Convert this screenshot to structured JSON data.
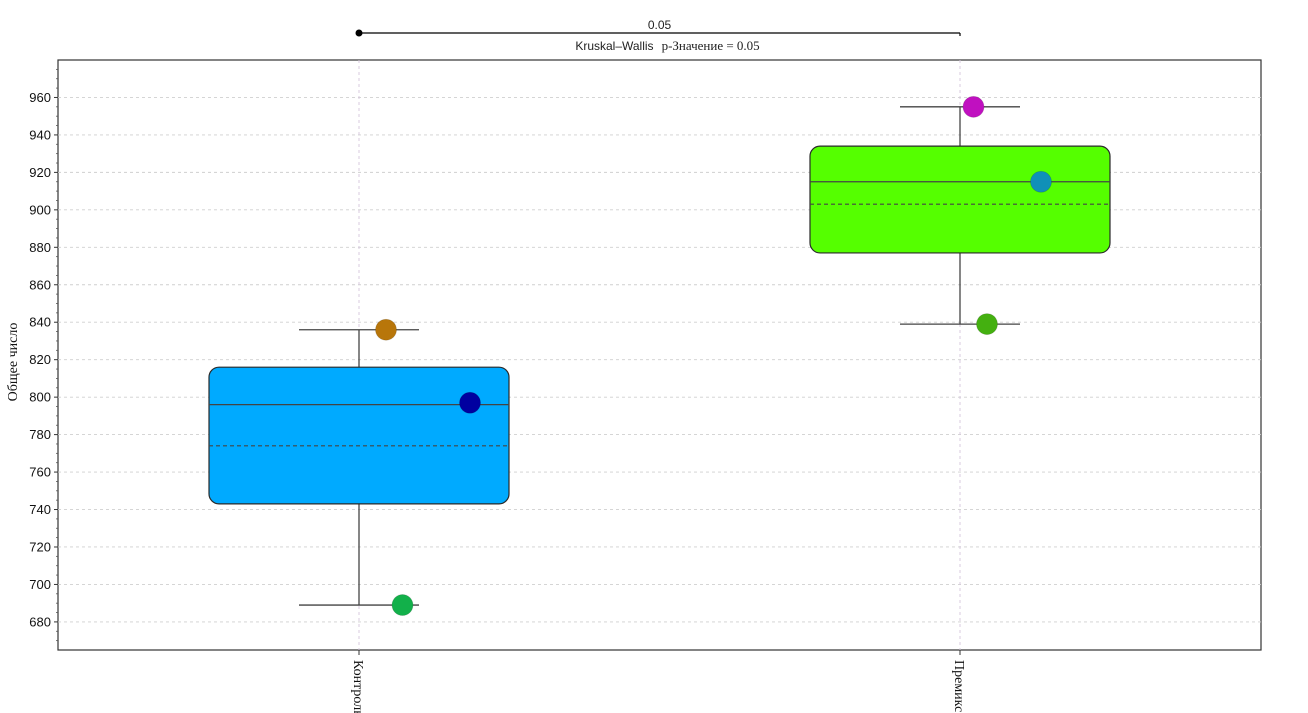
{
  "chart_data": {
    "type": "box",
    "ylabel": "Общее число",
    "xlabel": "",
    "ylim": [
      665,
      980
    ],
    "yticks": [
      680,
      700,
      720,
      740,
      760,
      780,
      800,
      820,
      840,
      860,
      880,
      900,
      920,
      940,
      960
    ],
    "grid": true,
    "categories": [
      "Контроль",
      "Премикс"
    ],
    "groups": [
      {
        "category": "Контроль",
        "color": "#00aaff",
        "min": 689,
        "q1": 743,
        "median": 796,
        "mean": 774,
        "q3": 816,
        "max": 836,
        "points": [
          {
            "value": 836,
            "offset": 0.18,
            "color": "#b8760a"
          },
          {
            "value": 797,
            "offset": 0.74,
            "color": "#0000a0"
          },
          {
            "value": 689,
            "offset": 0.29,
            "color": "#12b04a"
          }
        ]
      },
      {
        "category": "Премикс",
        "color": "#55ff00",
        "min": 839,
        "q1": 877,
        "median": 915,
        "mean": 903,
        "q3": 934,
        "max": 955,
        "points": [
          {
            "value": 955,
            "offset": 0.09,
            "color": "#c010c0"
          },
          {
            "value": 915,
            "offset": 0.54,
            "color": "#1090b8"
          },
          {
            "value": 839,
            "offset": 0.18,
            "color": "#44b010"
          }
        ]
      }
    ],
    "annotation": {
      "bracket_label": "0.05",
      "test_name": "Kruskal–Wallis",
      "test_result": "p-Значение = 0.05"
    }
  }
}
